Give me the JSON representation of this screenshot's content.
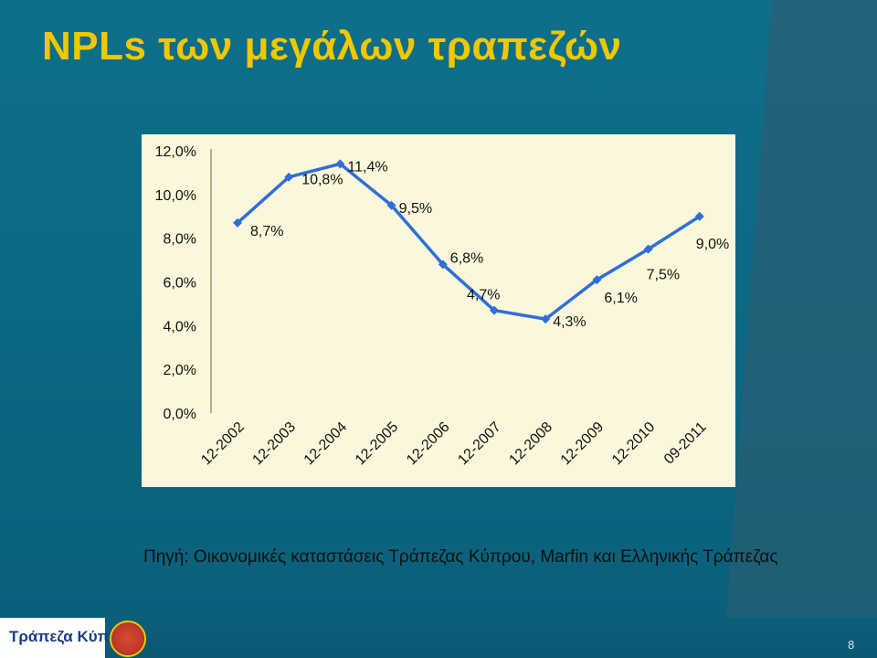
{
  "title": "NPLs των μεγάλων τραπεζών",
  "source_note": "Πηγή: Οικονομικές καταστάσεις Τράπεζας Κύπρου, Marfin και Ελληνικής Τράπεζας",
  "footer": {
    "bank_name": "Τράπεζα Κύπρου",
    "page_number": "8"
  },
  "colors": {
    "title": "#f0c800",
    "line": "#2f6fd6",
    "panel": "#fbf7dc",
    "background": "#0b6a86"
  },
  "chart_data": {
    "type": "line",
    "categories": [
      "12-2002",
      "12-2003",
      "12-2004",
      "12-2005",
      "12-2006",
      "12-2007",
      "12-2008",
      "12-2009",
      "12-2010",
      "09-2011"
    ],
    "series": [
      {
        "values": [
          0.087,
          0.108,
          0.114,
          0.095,
          0.068,
          0.047,
          0.043,
          0.061,
          0.075,
          0.09
        ]
      }
    ],
    "data_labels": [
      "8,7%",
      "10,8%",
      "11,4%",
      "9,5%",
      "6,8%",
      "4,7%",
      "4,3%",
      "6,1%",
      "7,5%",
      "9,0%"
    ],
    "y_ticks": [
      "0,0%",
      "2,0%",
      "4,0%",
      "6,0%",
      "8,0%",
      "10,0%",
      "12,0%"
    ],
    "ylim": [
      0,
      0.12
    ],
    "grid": false,
    "legend": "none"
  }
}
